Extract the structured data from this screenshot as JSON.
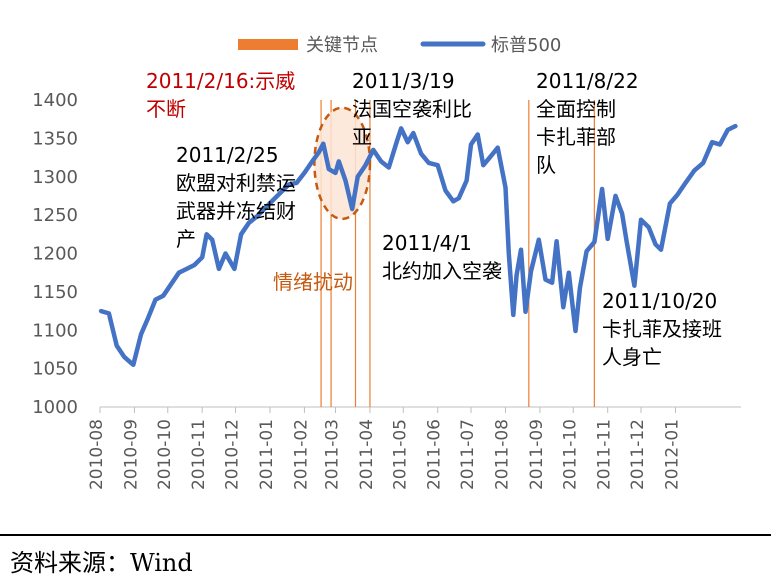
{
  "chart_data": {
    "type": "line",
    "title": "",
    "xlabel": "",
    "ylabel": "",
    "ylim": [
      1000,
      1400
    ],
    "yticks": [
      1000,
      1050,
      1100,
      1150,
      1200,
      1250,
      1300,
      1350,
      1400
    ],
    "xlim": [
      "2010-08-01",
      "2012-02-29"
    ],
    "xticks": [
      "2010-08",
      "2010-09",
      "2010-10",
      "2010-11",
      "2010-12",
      "2011-01",
      "2011-02",
      "2011-03",
      "2011-04",
      "2011-05",
      "2011-06",
      "2011-07",
      "2011-08",
      "2011-09",
      "2011-10",
      "2011-11",
      "2011-12",
      "2012-01"
    ],
    "grid": false,
    "legend": {
      "position": "top",
      "items": [
        {
          "label": "关键节点",
          "color": "#ED7D31",
          "kind": "band"
        },
        {
          "label": "标普500",
          "color": "#4472C4",
          "kind": "line"
        }
      ]
    },
    "series": [
      {
        "name": "标普500",
        "color": "#4472C4",
        "points": [
          [
            "2010-08-02",
            1125
          ],
          [
            "2010-08-09",
            1122
          ],
          [
            "2010-08-16",
            1080
          ],
          [
            "2010-08-23",
            1065
          ],
          [
            "2010-08-31",
            1055
          ],
          [
            "2010-09-07",
            1095
          ],
          [
            "2010-09-13",
            1115
          ],
          [
            "2010-09-20",
            1140
          ],
          [
            "2010-09-27",
            1145
          ],
          [
            "2010-10-04",
            1160
          ],
          [
            "2010-10-11",
            1175
          ],
          [
            "2010-10-18",
            1180
          ],
          [
            "2010-10-25",
            1185
          ],
          [
            "2010-11-01",
            1195
          ],
          [
            "2010-11-05",
            1225
          ],
          [
            "2010-11-10",
            1218
          ],
          [
            "2010-11-16",
            1180
          ],
          [
            "2010-11-22",
            1200
          ],
          [
            "2010-11-30",
            1180
          ],
          [
            "2010-12-06",
            1225
          ],
          [
            "2010-12-13",
            1240
          ],
          [
            "2010-12-20",
            1248
          ],
          [
            "2010-12-27",
            1258
          ],
          [
            "2011-01-04",
            1270
          ],
          [
            "2011-01-11",
            1280
          ],
          [
            "2011-01-18",
            1290
          ],
          [
            "2011-01-25",
            1292
          ],
          [
            "2011-02-01",
            1305
          ],
          [
            "2011-02-08",
            1320
          ],
          [
            "2011-02-14",
            1332
          ],
          [
            "2011-02-18",
            1343
          ],
          [
            "2011-02-23",
            1310
          ],
          [
            "2011-03-01",
            1305
          ],
          [
            "2011-03-04",
            1320
          ],
          [
            "2011-03-10",
            1295
          ],
          [
            "2011-03-16",
            1258
          ],
          [
            "2011-03-21",
            1300
          ],
          [
            "2011-03-28",
            1315
          ],
          [
            "2011-04-04",
            1335
          ],
          [
            "2011-04-11",
            1320
          ],
          [
            "2011-04-18",
            1312
          ],
          [
            "2011-04-25",
            1345
          ],
          [
            "2011-04-29",
            1363
          ],
          [
            "2011-05-05",
            1345
          ],
          [
            "2011-05-10",
            1357
          ],
          [
            "2011-05-17",
            1330
          ],
          [
            "2011-05-24",
            1318
          ],
          [
            "2011-06-01",
            1315
          ],
          [
            "2011-06-08",
            1282
          ],
          [
            "2011-06-15",
            1268
          ],
          [
            "2011-06-20",
            1272
          ],
          [
            "2011-06-27",
            1295
          ],
          [
            "2011-07-01",
            1342
          ],
          [
            "2011-07-07",
            1355
          ],
          [
            "2011-07-12",
            1315
          ],
          [
            "2011-07-19",
            1327
          ],
          [
            "2011-07-25",
            1338
          ],
          [
            "2011-08-01",
            1286
          ],
          [
            "2011-08-04",
            1200
          ],
          [
            "2011-08-08",
            1120
          ],
          [
            "2011-08-11",
            1172
          ],
          [
            "2011-08-15",
            1205
          ],
          [
            "2011-08-19",
            1124
          ],
          [
            "2011-08-24",
            1177
          ],
          [
            "2011-08-31",
            1218
          ],
          [
            "2011-09-06",
            1166
          ],
          [
            "2011-09-12",
            1162
          ],
          [
            "2011-09-16",
            1216
          ],
          [
            "2011-09-22",
            1130
          ],
          [
            "2011-09-27",
            1175
          ],
          [
            "2011-10-03",
            1099
          ],
          [
            "2011-10-07",
            1155
          ],
          [
            "2011-10-13",
            1203
          ],
          [
            "2011-10-20",
            1215
          ],
          [
            "2011-10-27",
            1284
          ],
          [
            "2011-11-01",
            1219
          ],
          [
            "2011-11-08",
            1275
          ],
          [
            "2011-11-14",
            1252
          ],
          [
            "2011-11-18",
            1216
          ],
          [
            "2011-11-25",
            1158
          ],
          [
            "2011-12-01",
            1244
          ],
          [
            "2011-12-08",
            1234
          ],
          [
            "2011-12-14",
            1212
          ],
          [
            "2011-12-19",
            1205
          ],
          [
            "2011-12-27",
            1265
          ],
          [
            "2012-01-03",
            1277
          ],
          [
            "2012-01-10",
            1292
          ],
          [
            "2012-01-18",
            1308
          ],
          [
            "2012-01-26",
            1318
          ],
          [
            "2012-02-03",
            1345
          ],
          [
            "2012-02-10",
            1342
          ],
          [
            "2012-02-17",
            1361
          ],
          [
            "2012-02-24",
            1366
          ]
        ]
      }
    ],
    "event_lines": [
      {
        "date": "2011-02-16",
        "color": "#ED7D31"
      },
      {
        "date": "2011-02-25",
        "color": "#ED7D31"
      },
      {
        "date": "2011-03-19",
        "color": "#ED7D31"
      },
      {
        "date": "2011-04-01",
        "color": "#ED7D31"
      },
      {
        "date": "2011-08-22",
        "color": "#ED7D31"
      },
      {
        "date": "2011-10-20",
        "color": "#ED7D31"
      }
    ],
    "highlight_ellipse": {
      "x_range": [
        "2011-02-10",
        "2011-04-01"
      ],
      "y_range": [
        1245,
        1390
      ],
      "color": "#C55A11"
    },
    "annotations": [
      {
        "lines": [
          "2011/2/16:示威",
          "不断"
        ],
        "color": "#C00000",
        "anchor_date": "2011-02-16"
      },
      {
        "lines": [
          "2011/2/25",
          "欧盟对利禁运",
          "武器并冻结财",
          "产"
        ],
        "color": "#000000",
        "anchor_date": "2011-02-25"
      },
      {
        "lines": [
          "2011/3/19",
          "法国空袭利比",
          "亚"
        ],
        "color": "#000000",
        "anchor_date": "2011-03-19"
      },
      {
        "lines": [
          "2011/4/1",
          "北约加入空袭"
        ],
        "color": "#000000",
        "anchor_date": "2011-04-01"
      },
      {
        "lines": [
          "2011/8/22",
          "全面控制",
          "卡扎菲部",
          "队"
        ],
        "color": "#000000",
        "anchor_date": "2011-08-22"
      },
      {
        "lines": [
          "2011/10/20",
          "卡扎菲及接班",
          "人身亡"
        ],
        "color": "#000000",
        "anchor_date": "2011-10-20"
      },
      {
        "lines": [
          "情绪扰动"
        ],
        "color": "#C55A11",
        "anchor_date": "2011-03-01"
      }
    ]
  },
  "footer": {
    "source": "资料来源：Wind"
  }
}
